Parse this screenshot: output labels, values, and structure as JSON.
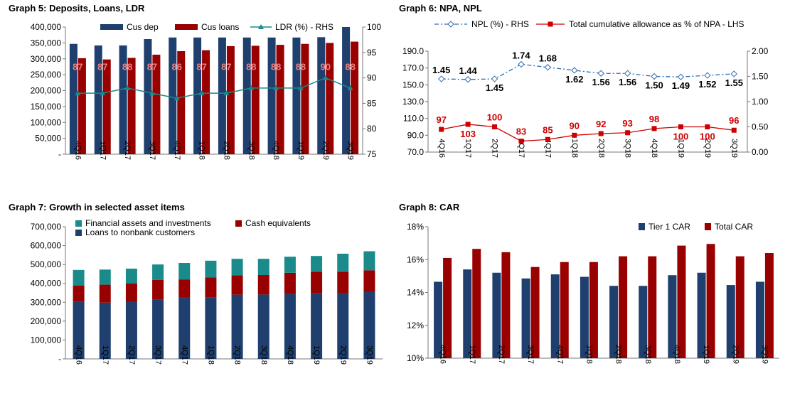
{
  "chart_data": [
    {
      "id": "g5",
      "title": "Graph 5: Deposits, Loans, LDR",
      "type": "bar",
      "categories": [
        "4Q16",
        "1Q17",
        "2Q17",
        "3Q17",
        "4Q17",
        "1Q18",
        "2Q18",
        "3Q18",
        "4Q18",
        "1Q19",
        "2Q19",
        "3Q19"
      ],
      "series": [
        {
          "name": "Cus dep",
          "type": "bar",
          "axis": "left",
          "color": "#1f3f6e",
          "values": [
            347000,
            342000,
            342000,
            362000,
            367000,
            367000,
            367000,
            367000,
            367000,
            367000,
            368000,
            400000
          ]
        },
        {
          "name": "Cus loans",
          "type": "bar",
          "axis": "left",
          "color": "#990000",
          "values": [
            302000,
            298000,
            303000,
            313000,
            324000,
            327000,
            340000,
            341000,
            344000,
            347000,
            350000,
            354000
          ]
        },
        {
          "name": "LDR (%) - RHS",
          "type": "line",
          "axis": "right",
          "color": "#1a8a8a",
          "values": [
            87,
            87,
            88,
            87,
            86,
            87,
            87,
            88,
            88,
            88,
            90,
            88
          ]
        }
      ],
      "data_labels": [
        "87",
        "87",
        "88",
        "87",
        "86",
        "87",
        "87",
        "88",
        "88",
        "88",
        "90",
        "88"
      ],
      "y_left": {
        "min": 0,
        "max": 400000,
        "step": 50000,
        "ticks": [
          "-",
          "50,000",
          "100,000",
          "150,000",
          "200,000",
          "250,000",
          "300,000",
          "350,000",
          "400,000"
        ]
      },
      "y_right": {
        "min": 75,
        "max": 100,
        "step": 5,
        "ticks": [
          "75",
          "80",
          "85",
          "90",
          "95",
          "100"
        ]
      },
      "legend": "top",
      "grid": false
    },
    {
      "id": "g6",
      "title": "Graph 6: NPA, NPL",
      "type": "line",
      "categories": [
        "4Q16",
        "1Q17",
        "2Q17",
        "3Q17",
        "4Q17",
        "1Q18",
        "2Q18",
        "3Q18",
        "4Q18",
        "1Q19",
        "2Q19",
        "3Q19"
      ],
      "series": [
        {
          "name": "NPL (%) - RHS",
          "axis": "right",
          "color": "#2e6db4",
          "values": [
            1.45,
            1.44,
            1.45,
            1.74,
            1.68,
            1.62,
            1.56,
            1.56,
            1.5,
            1.49,
            1.52,
            1.55
          ],
          "labels": [
            "1.45",
            "1.44",
            "1.45",
            "1.74",
            "1.68",
            "1.62",
            "1.56",
            "1.56",
            "1.50",
            "1.49",
            "1.52",
            "1.55"
          ]
        },
        {
          "name": "Total cumulative allowance as % of NPA - LHS",
          "axis": "left",
          "color": "#cc0000",
          "values": [
            97,
            103,
            100,
            83,
            85,
            90,
            92,
            93,
            98,
            100,
            100,
            96
          ],
          "labels": [
            "97",
            "103",
            "100",
            "83",
            "85",
            "90",
            "92",
            "93",
            "98",
            "100",
            "100",
            "96"
          ]
        }
      ],
      "y_left": {
        "min": 70,
        "max": 190,
        "step": 20,
        "ticks": [
          "70.0",
          "90.0",
          "110.0",
          "130.0",
          "150.0",
          "170.0",
          "190.0"
        ]
      },
      "y_right": {
        "min": 0,
        "max": 2,
        "step": 0.5,
        "ticks": [
          "0.00",
          "0.50",
          "1.00",
          "1.50",
          "2.00"
        ]
      },
      "legend": "top",
      "grid": false
    },
    {
      "id": "g7",
      "title": "Graph 7: Growth in selected asset items",
      "type": "bar",
      "stacked": true,
      "categories": [
        "4Q16",
        "1Q17",
        "2Q17",
        "3Q17",
        "4Q17",
        "1Q18",
        "2Q18",
        "3Q18",
        "4Q18",
        "1Q19",
        "2Q19",
        "3Q19"
      ],
      "series": [
        {
          "name": "Loans to nonbank customers",
          "color": "#1f3f6e",
          "values": [
            302000,
            298000,
            303000,
            313000,
            324000,
            327000,
            340000,
            341000,
            344000,
            347000,
            350000,
            354000
          ]
        },
        {
          "name": "Cash equivalents",
          "color": "#990000",
          "values": [
            87000,
            95000,
            97000,
            105000,
            97000,
            105000,
            102000,
            103000,
            112000,
            115000,
            112000,
            115000
          ]
        },
        {
          "name": "Financial assets and investments",
          "color": "#1a8a8a",
          "values": [
            82000,
            80000,
            78000,
            82000,
            87000,
            88000,
            88000,
            86000,
            85000,
            83000,
            95000,
            101000
          ]
        }
      ],
      "y_left": {
        "min": 0,
        "max": 700000,
        "step": 100000,
        "ticks": [
          "-",
          "100,000",
          "200,000",
          "300,000",
          "400,000",
          "500,000",
          "600,000",
          "700,000"
        ]
      },
      "legend": "top",
      "grid": false
    },
    {
      "id": "g8",
      "title": "Graph 8: CAR",
      "type": "bar",
      "categories": [
        "4Q16",
        "1Q17",
        "2Q17",
        "3Q17",
        "4Q17",
        "1Q18",
        "2Q18",
        "3Q18",
        "4Q18",
        "1Q19",
        "2Q19",
        "3Q19"
      ],
      "series": [
        {
          "name": "Tier 1 CAR",
          "color": "#1f3f6e",
          "values": [
            14.65,
            15.4,
            15.2,
            14.85,
            15.1,
            14.95,
            14.4,
            14.4,
            15.05,
            15.2,
            14.45,
            14.65
          ]
        },
        {
          "name": "Total CAR",
          "color": "#990000",
          "values": [
            16.1,
            16.65,
            16.45,
            15.55,
            15.85,
            15.85,
            16.2,
            16.2,
            16.85,
            16.95,
            16.2,
            16.4
          ]
        }
      ],
      "y_left": {
        "min": 10,
        "max": 18,
        "step": 2,
        "ticks": [
          "10%",
          "12%",
          "14%",
          "16%",
          "18%"
        ]
      },
      "legend": "top-right",
      "grid": false
    }
  ]
}
